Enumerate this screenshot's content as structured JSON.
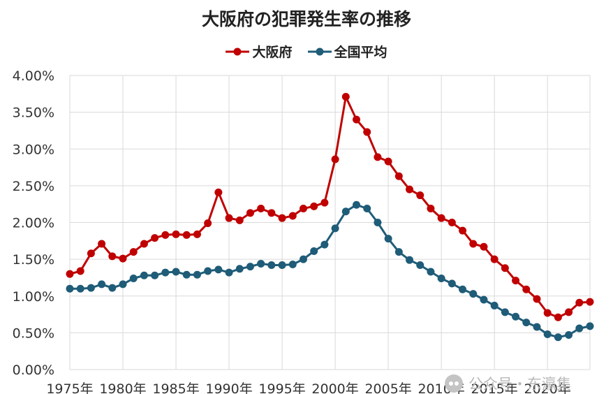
{
  "chart_data": {
    "type": "line",
    "title": "大阪府の犯罪発生率の推移",
    "xlabel": "",
    "ylabel": "",
    "ylim": [
      0,
      0.04
    ],
    "yticks": [
      "0.00%",
      "0.50%",
      "1.00%",
      "1.50%",
      "2.00%",
      "2.50%",
      "3.00%",
      "3.50%",
      "4.00%"
    ],
    "xticks": [
      "1975年",
      "1980年",
      "1985年",
      "1990年",
      "1995年",
      "2000年",
      "2005年",
      "2010年",
      "2015年",
      "2020年"
    ],
    "xlim": [
      1975,
      2024
    ],
    "grid": true,
    "legend_position": "top-center",
    "x": [
      1975,
      1976,
      1977,
      1978,
      1979,
      1980,
      1981,
      1982,
      1983,
      1984,
      1985,
      1986,
      1987,
      1988,
      1989,
      1990,
      1991,
      1992,
      1993,
      1994,
      1995,
      1996,
      1997,
      1998,
      1999,
      2000,
      2001,
      2002,
      2003,
      2004,
      2005,
      2006,
      2007,
      2008,
      2009,
      2010,
      2011,
      2012,
      2013,
      2014,
      2015,
      2016,
      2017,
      2018,
      2019,
      2020,
      2021,
      2022,
      2023,
      2024
    ],
    "series": [
      {
        "name": "大阪府",
        "color": "#c00000",
        "values": [
          0.013,
          0.0134,
          0.0158,
          0.0171,
          0.0154,
          0.0151,
          0.016,
          0.0171,
          0.0179,
          0.0183,
          0.0184,
          0.0183,
          0.0184,
          0.0199,
          0.0241,
          0.0206,
          0.0203,
          0.0213,
          0.0219,
          0.0213,
          0.0206,
          0.0209,
          0.0219,
          0.0222,
          0.0227,
          0.0286,
          0.0371,
          0.034,
          0.0323,
          0.0289,
          0.0283,
          0.0263,
          0.0245,
          0.0237,
          0.0219,
          0.0206,
          0.02,
          0.0189,
          0.0171,
          0.0167,
          0.015,
          0.0138,
          0.0121,
          0.0109,
          0.0096,
          0.0077,
          0.0071,
          0.0078,
          0.0091,
          0.0092
        ]
      },
      {
        "name": "全国平均",
        "color": "#1f5c78",
        "values": [
          0.011,
          0.011,
          0.0111,
          0.0116,
          0.0111,
          0.0116,
          0.0124,
          0.0128,
          0.0128,
          0.0132,
          0.0133,
          0.0129,
          0.0129,
          0.0134,
          0.0136,
          0.0132,
          0.0137,
          0.014,
          0.0144,
          0.0142,
          0.0142,
          0.0143,
          0.015,
          0.0161,
          0.017,
          0.0192,
          0.0215,
          0.0224,
          0.0219,
          0.02,
          0.0178,
          0.016,
          0.0149,
          0.0142,
          0.0133,
          0.0124,
          0.0117,
          0.0109,
          0.0103,
          0.0095,
          0.0087,
          0.0078,
          0.0072,
          0.0064,
          0.0058,
          0.0048,
          0.0044,
          0.0047,
          0.0056,
          0.0059
        ]
      }
    ]
  },
  "watermark": {
    "logo_icon": "wechat-logo-icon",
    "text": "公众号・东瀛集"
  }
}
